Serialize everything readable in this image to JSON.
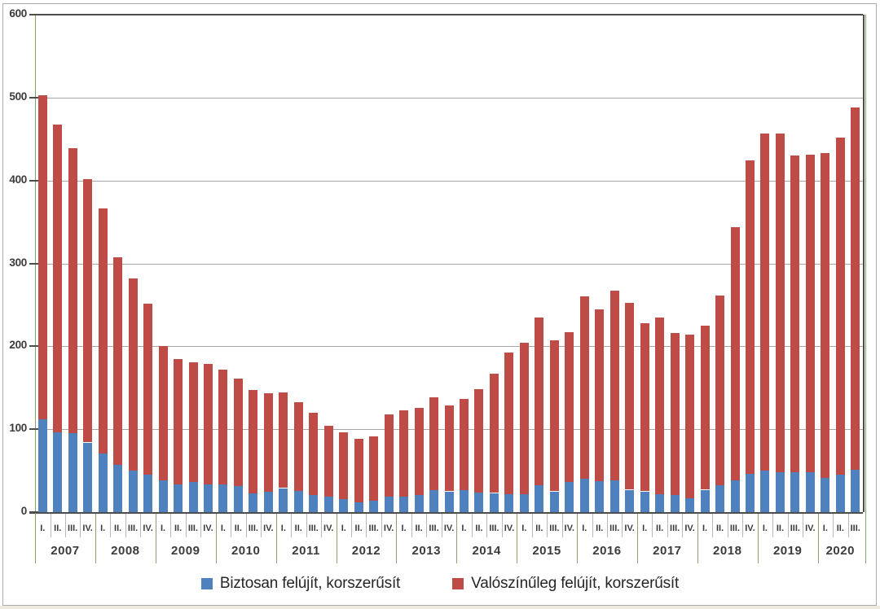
{
  "chart_data": {
    "type": "bar",
    "stacked": true,
    "title": "",
    "y_axis": {
      "min": 0,
      "max": 600,
      "step": 100,
      "tick_labels": [
        "0",
        "100",
        "200",
        "300",
        "400",
        "500",
        "600"
      ]
    },
    "x_axis": {
      "years": [
        {
          "label": "2007",
          "quarters": [
            "I.",
            "II.",
            "III.",
            "IV."
          ]
        },
        {
          "label": "2008",
          "quarters": [
            "I.",
            "II.",
            "III.",
            "IV."
          ]
        },
        {
          "label": "2009",
          "quarters": [
            "I.",
            "II.",
            "III.",
            "IV."
          ]
        },
        {
          "label": "2010",
          "quarters": [
            "I.",
            "II.",
            "III.",
            "IV."
          ]
        },
        {
          "label": "2011",
          "quarters": [
            "I.",
            "II.",
            "III.",
            "IV."
          ]
        },
        {
          "label": "2012",
          "quarters": [
            "I.",
            "II.",
            "III.",
            "IV."
          ]
        },
        {
          "label": "2013",
          "quarters": [
            "I.",
            "II.",
            "III.",
            "IV."
          ]
        },
        {
          "label": "2014",
          "quarters": [
            "I.",
            "II.",
            "III.",
            "IV."
          ]
        },
        {
          "label": "2015",
          "quarters": [
            "I.",
            "II.",
            "III.",
            "IV."
          ]
        },
        {
          "label": "2016",
          "quarters": [
            "I.",
            "II.",
            "III.",
            "IV."
          ]
        },
        {
          "label": "2017",
          "quarters": [
            "I.",
            "II.",
            "III.",
            "IV."
          ]
        },
        {
          "label": "2018",
          "quarters": [
            "I.",
            "II.",
            "III.",
            "IV."
          ]
        },
        {
          "label": "2019",
          "quarters": [
            "I.",
            "II.",
            "III.",
            "IV."
          ]
        },
        {
          "label": "2020",
          "quarters": [
            "I.",
            "II.",
            "III."
          ]
        }
      ]
    },
    "series": [
      {
        "name": "Biztosan felújít, korszerűsít",
        "color": "#4E81BD",
        "values": [
          112,
          96,
          95,
          84,
          71,
          57,
          50,
          45,
          38,
          33,
          36,
          33,
          33,
          31,
          23,
          25,
          29,
          26,
          21,
          19,
          16,
          12,
          14,
          19,
          19,
          21,
          27,
          25,
          27,
          24,
          23,
          22,
          22,
          32,
          25,
          36,
          40,
          37,
          38,
          27,
          25,
          22,
          21,
          17,
          27,
          32,
          38,
          46,
          50,
          48,
          48,
          48,
          41,
          45,
          51
        ]
      },
      {
        "name": "Valószínűleg felújít, korszerűsít",
        "color": "#BE4B45",
        "values": [
          391,
          371,
          344,
          318,
          295,
          250,
          232,
          206,
          162,
          152,
          145,
          146,
          139,
          130,
          124,
          118,
          115,
          107,
          99,
          85,
          80,
          76,
          77,
          99,
          104,
          105,
          112,
          104,
          110,
          124,
          144,
          171,
          182,
          203,
          182,
          181,
          220,
          208,
          229,
          225,
          203,
          213,
          195,
          197,
          198,
          229,
          306,
          378,
          407,
          409,
          382,
          383,
          392,
          407,
          437
        ]
      }
    ],
    "legend_position": "bottom",
    "grid": true
  },
  "colors": {
    "grid_line": "#A8A8A8",
    "axis_line": "#4D4D4D",
    "plot_side_border": "#84A465",
    "year_separator": "#8FA173",
    "quarter_separator": "#B8B8B8",
    "axis_text": "#3B3B3B",
    "legend_text": "#262626",
    "figure_border": "#ABABAB",
    "page_bottom_strip": "#EDEADF",
    "background": "#FFFFFF"
  }
}
